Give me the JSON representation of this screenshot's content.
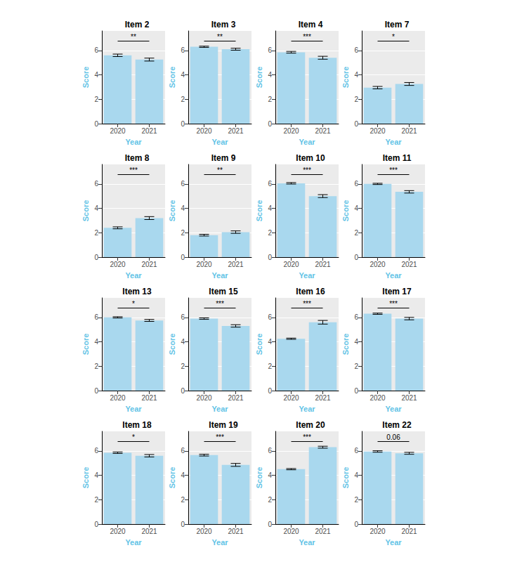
{
  "chart_data": [
    {
      "type": "bar",
      "title": "Item 2",
      "x_label": "Year",
      "y_label": "Score",
      "categories": [
        "2020",
        "2021"
      ],
      "values": [
        5.6,
        5.25
      ],
      "errors": [
        0.1,
        0.12
      ],
      "annotation": "**",
      "color": "#a9d8ee",
      "ylim": [
        0,
        7.6
      ],
      "yticks": [
        0,
        2,
        4,
        6
      ],
      "grid": true
    },
    {
      "type": "bar",
      "title": "Item 3",
      "x_label": "Year",
      "y_label": "Score",
      "categories": [
        "2020",
        "2021"
      ],
      "values": [
        6.3,
        6.1
      ],
      "errors": [
        0.05,
        0.08
      ],
      "annotation": "**",
      "color": "#a9d8ee",
      "ylim": [
        0,
        7.6
      ],
      "yticks": [
        0,
        2,
        4,
        6
      ],
      "grid": true
    },
    {
      "type": "bar",
      "title": "Item 4",
      "x_label": "Year",
      "y_label": "Score",
      "categories": [
        "2020",
        "2021"
      ],
      "values": [
        5.85,
        5.4
      ],
      "errors": [
        0.07,
        0.12
      ],
      "annotation": "***",
      "color": "#a9d8ee",
      "ylim": [
        0,
        7.6
      ],
      "yticks": [
        0,
        2,
        4,
        6
      ],
      "grid": true
    },
    {
      "type": "bar",
      "title": "Item 7",
      "x_label": "Year",
      "y_label": "Score",
      "categories": [
        "2020",
        "2021"
      ],
      "values": [
        2.95,
        3.25
      ],
      "errors": [
        0.1,
        0.12
      ],
      "annotation": "*",
      "color": "#a9d8ee",
      "ylim": [
        0,
        7.6
      ],
      "yticks": [
        0,
        2,
        4,
        6
      ],
      "grid": true
    },
    {
      "type": "bar",
      "title": "Item 8",
      "x_label": "Year",
      "y_label": "Score",
      "categories": [
        "2020",
        "2021"
      ],
      "values": [
        2.4,
        3.2
      ],
      "errors": [
        0.08,
        0.12
      ],
      "annotation": "***",
      "color": "#a9d8ee",
      "ylim": [
        0,
        7.6
      ],
      "yticks": [
        0,
        2,
        4,
        6
      ],
      "grid": true
    },
    {
      "type": "bar",
      "title": "Item 9",
      "x_label": "Year",
      "y_label": "Score",
      "categories": [
        "2020",
        "2021"
      ],
      "values": [
        1.8,
        2.05
      ],
      "errors": [
        0.07,
        0.1
      ],
      "annotation": "**",
      "color": "#a9d8ee",
      "ylim": [
        0,
        7.6
      ],
      "yticks": [
        0,
        2,
        4,
        6
      ],
      "grid": true
    },
    {
      "type": "bar",
      "title": "Item 10",
      "x_label": "Year",
      "y_label": "Score",
      "categories": [
        "2020",
        "2021"
      ],
      "values": [
        6.05,
        5.0
      ],
      "errors": [
        0.06,
        0.12
      ],
      "annotation": "***",
      "color": "#a9d8ee",
      "ylim": [
        0,
        7.6
      ],
      "yticks": [
        0,
        2,
        4,
        6
      ],
      "grid": true
    },
    {
      "type": "bar",
      "title": "Item 11",
      "x_label": "Year",
      "y_label": "Score",
      "categories": [
        "2020",
        "2021"
      ],
      "values": [
        6.0,
        5.35
      ],
      "errors": [
        0.05,
        0.1
      ],
      "annotation": "***",
      "color": "#a9d8ee",
      "ylim": [
        0,
        7.6
      ],
      "yticks": [
        0,
        2,
        4,
        6
      ],
      "grid": true
    },
    {
      "type": "bar",
      "title": "Item 13",
      "x_label": "Year",
      "y_label": "Score",
      "categories": [
        "2020",
        "2021"
      ],
      "values": [
        6.0,
        5.75
      ],
      "errors": [
        0.05,
        0.08
      ],
      "annotation": "*",
      "color": "#a9d8ee",
      "ylim": [
        0,
        7.6
      ],
      "yticks": [
        0,
        2,
        4,
        6
      ],
      "grid": true
    },
    {
      "type": "bar",
      "title": "Item 15",
      "x_label": "Year",
      "y_label": "Score",
      "categories": [
        "2020",
        "2021"
      ],
      "values": [
        5.9,
        5.3
      ],
      "errors": [
        0.06,
        0.1
      ],
      "annotation": "***",
      "color": "#a9d8ee",
      "ylim": [
        0,
        7.6
      ],
      "yticks": [
        0,
        2,
        4,
        6
      ],
      "grid": true
    },
    {
      "type": "bar",
      "title": "Item 16",
      "x_label": "Year",
      "y_label": "Score",
      "categories": [
        "2020",
        "2021"
      ],
      "values": [
        4.25,
        5.6
      ],
      "errors": [
        0.05,
        0.15
      ],
      "annotation": "***",
      "color": "#a9d8ee",
      "ylim": [
        0,
        7.6
      ],
      "yticks": [
        0,
        2,
        4,
        6
      ],
      "grid": true
    },
    {
      "type": "bar",
      "title": "Item 17",
      "x_label": "Year",
      "y_label": "Score",
      "categories": [
        "2020",
        "2021"
      ],
      "values": [
        6.3,
        5.9
      ],
      "errors": [
        0.05,
        0.1
      ],
      "annotation": "***",
      "color": "#a9d8ee",
      "ylim": [
        0,
        7.6
      ],
      "yticks": [
        0,
        2,
        4,
        6
      ],
      "grid": true
    },
    {
      "type": "bar",
      "title": "Item 18",
      "x_label": "Year",
      "y_label": "Score",
      "categories": [
        "2020",
        "2021"
      ],
      "values": [
        5.85,
        5.6
      ],
      "errors": [
        0.06,
        0.1
      ],
      "annotation": "*",
      "color": "#a9d8ee",
      "ylim": [
        0,
        7.6
      ],
      "yticks": [
        0,
        2,
        4,
        6
      ],
      "grid": true
    },
    {
      "type": "bar",
      "title": "Item 19",
      "x_label": "Year",
      "y_label": "Score",
      "categories": [
        "2020",
        "2021"
      ],
      "values": [
        5.65,
        4.85
      ],
      "errors": [
        0.07,
        0.12
      ],
      "annotation": "***",
      "color": "#a9d8ee",
      "ylim": [
        0,
        7.6
      ],
      "yticks": [
        0,
        2,
        4,
        6
      ],
      "grid": true
    },
    {
      "type": "bar",
      "title": "Item 20",
      "x_label": "Year",
      "y_label": "Score",
      "categories": [
        "2020",
        "2021"
      ],
      "values": [
        4.5,
        6.3
      ],
      "errors": [
        0.05,
        0.08
      ],
      "annotation": "***",
      "color": "#a9d8ee",
      "ylim": [
        0,
        7.6
      ],
      "yticks": [
        0,
        2,
        4,
        6
      ],
      "grid": true
    },
    {
      "type": "bar",
      "title": "Item 22",
      "x_label": "Year",
      "y_label": "Score",
      "categories": [
        "2020",
        "2021"
      ],
      "values": [
        5.95,
        5.8
      ],
      "errors": [
        0.06,
        0.08
      ],
      "annotation": "0.06",
      "color": "#a9d8ee",
      "ylim": [
        0,
        7.6
      ],
      "yticks": [
        0,
        2,
        4,
        6
      ],
      "grid": true
    }
  ]
}
